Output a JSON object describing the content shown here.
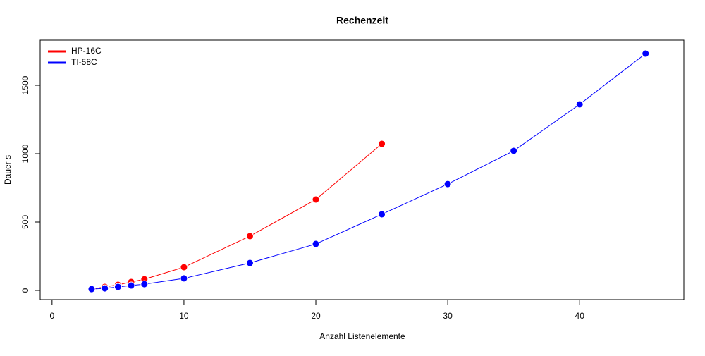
{
  "chart_data": {
    "type": "line",
    "title": "Rechenzeit",
    "xlabel": "Anzahl Listenelemente",
    "ylabel": "Dauer s",
    "xlim": [
      -0.9,
      47.9
    ],
    "ylim": [
      -67,
      1830
    ],
    "xticks": [
      0,
      10,
      20,
      30,
      40
    ],
    "yticks": [
      0,
      500,
      1000,
      1500
    ],
    "legend": "top-left",
    "series": [
      {
        "name": "HP-16C",
        "color": "#ff0000",
        "x": [
          3,
          4,
          5,
          6,
          7,
          10,
          15,
          20,
          25
        ],
        "values": [
          10,
          26,
          41,
          62,
          82,
          170,
          397,
          665,
          1072
        ]
      },
      {
        "name": "TI-58C",
        "color": "#0000ff",
        "x": [
          3,
          4,
          5,
          6,
          7,
          10,
          15,
          20,
          25,
          30,
          35,
          40,
          45
        ],
        "values": [
          10,
          15,
          26,
          36,
          46,
          88,
          201,
          340,
          557,
          778,
          1021,
          1361,
          1732
        ]
      }
    ]
  }
}
